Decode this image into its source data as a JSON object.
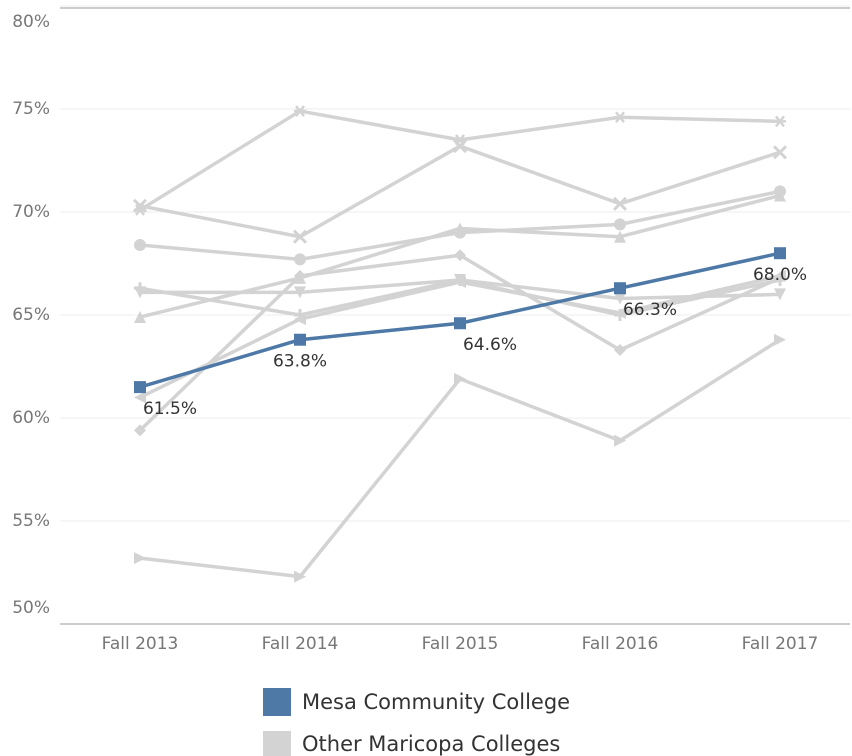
{
  "chart_data": {
    "type": "line",
    "categories": [
      "Fall 2013",
      "Fall 2014",
      "Fall 2015",
      "Fall 2016",
      "Fall 2017"
    ],
    "ylim": [
      50,
      80
    ],
    "yticks": [
      {
        "value": 50,
        "label": "50%"
      },
      {
        "value": 55,
        "label": "55%"
      },
      {
        "value": 60,
        "label": "60%"
      },
      {
        "value": 65,
        "label": "65%"
      },
      {
        "value": 70,
        "label": "70%"
      },
      {
        "value": 75,
        "label": "75%"
      },
      {
        "value": 80,
        "label": "80%"
      }
    ],
    "grid": true,
    "series": [
      {
        "name": "Mesa Community College",
        "color": "#4e79a7",
        "values": [
          61.5,
          63.8,
          64.6,
          66.3,
          68.0
        ],
        "value_labels": [
          "61.5%",
          "63.8%",
          "64.6%",
          "66.3%",
          "68.0%"
        ]
      },
      {
        "name": "Other Maricopa Colleges",
        "color": "#d3d3d3",
        "lines": [
          [
            70.1,
            74.9,
            73.5,
            74.6,
            74.4
          ],
          [
            70.3,
            68.8,
            73.2,
            70.4,
            72.9
          ],
          [
            68.4,
            67.7,
            69.0,
            69.4,
            71.0
          ],
          [
            64.9,
            66.8,
            69.2,
            68.8,
            70.8
          ],
          [
            59.4,
            66.9,
            67.9,
            63.3,
            66.8
          ],
          [
            66.1,
            66.1,
            66.7,
            65.8,
            66.0
          ],
          [
            66.3,
            65.0,
            66.7,
            65.0,
            66.7
          ],
          [
            61.0,
            64.8,
            66.6,
            65.1,
            66.9
          ],
          [
            53.2,
            52.3,
            61.9,
            58.9,
            63.8
          ]
        ]
      }
    ]
  }
}
